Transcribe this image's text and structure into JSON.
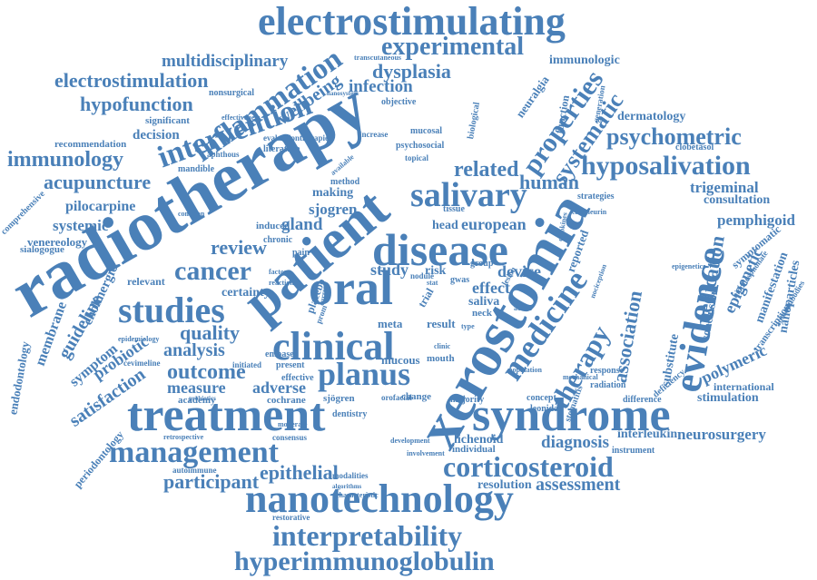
{
  "cloud": {
    "color": "#4a80b8",
    "words": [
      "electrostimulating",
      "experimental",
      "multidisciplinary",
      "inflammation",
      "wellbeing",
      "dysplasia",
      "immunologic",
      "electrostimulation",
      "infection",
      "hypofunction",
      "intervention",
      "radiotherapy",
      "patient",
      "xerostomia",
      "properties",
      "systematic",
      "dermatology",
      "psychometric",
      "immunology",
      "acupuncture",
      "salivary",
      "related",
      "hyposalivation",
      "human",
      "disease",
      "trigeminal",
      "consultation",
      "pemphigoid",
      "pilocarpine",
      "systemic",
      "venereology",
      "sjogren",
      "gland",
      "european",
      "review",
      "cancer",
      "oral",
      "studies",
      "certainty",
      "evidence",
      "medication",
      "epigenetic",
      "manifestation",
      "nanoparticles",
      "guideline",
      "probiotic",
      "quality",
      "symptom",
      "analysis",
      "clinical",
      "medicine",
      "therapy",
      "association",
      "polymeric",
      "outcome",
      "planus",
      "measure",
      "adverse",
      "satisfaction",
      "treatment",
      "syndrome",
      "management",
      "corticosteroid",
      "nanotechnology",
      "epithelial",
      "participant",
      "assessment",
      "interpretability",
      "hyperimmunoglobulin",
      "diagnosis",
      "interleukin",
      "neurosurgery",
      "lichenoid",
      "resolution",
      "stimulation",
      "international",
      "endodontology",
      "membrane",
      "periodontology",
      "cholinergic",
      "relevant",
      "decision",
      "recommendation",
      "significant",
      "nonsurgical",
      "effectiveness",
      "study",
      "risk",
      "device",
      "effect",
      "saliva",
      "meta",
      "result",
      "neck",
      "mouth",
      "mucous",
      "cochrane",
      "sjögren",
      "academy",
      "present",
      "embase",
      "placebo",
      "making",
      "induced",
      "chronic",
      "method",
      "increase",
      "topical",
      "head",
      "group",
      "gwas",
      "trial",
      "biological",
      "neuralgia",
      "function",
      "reported",
      "substitute",
      "conclusion",
      "symptomatic",
      "transcription",
      "autoantibodies",
      "cevimeline",
      "comprehensive",
      "sialogogue",
      "mandible",
      "aphthous",
      "available",
      "literature",
      "evaluation",
      "therapies",
      "psychosocial",
      "mucosal",
      "tissue",
      "pain",
      "change",
      "majority",
      "concept",
      "radiation",
      "response",
      "deficiency",
      "difference",
      "dentistry",
      "consensus",
      "modalities",
      "algorithms",
      "characteristic",
      "restorative",
      "retrospective",
      "autoimmune",
      "individual",
      "instrument",
      "common",
      "objective",
      "transcutaneous",
      "nanosystem",
      "nodule",
      "active",
      "clinic",
      "type",
      "lesion",
      "stat",
      "reaction",
      "current",
      "prom",
      "factor",
      "population",
      "mechanical",
      "leonidas",
      "stomatitis",
      "strategies",
      "epigenetics",
      "cytokines",
      "nociception",
      "clobetasol",
      "biophosphonate",
      "effective",
      "probiotics",
      "initiated",
      "development",
      "involvement",
      "orofacial",
      "moderate",
      "epidemiology",
      "generation",
      "calcineurin"
    ]
  }
}
